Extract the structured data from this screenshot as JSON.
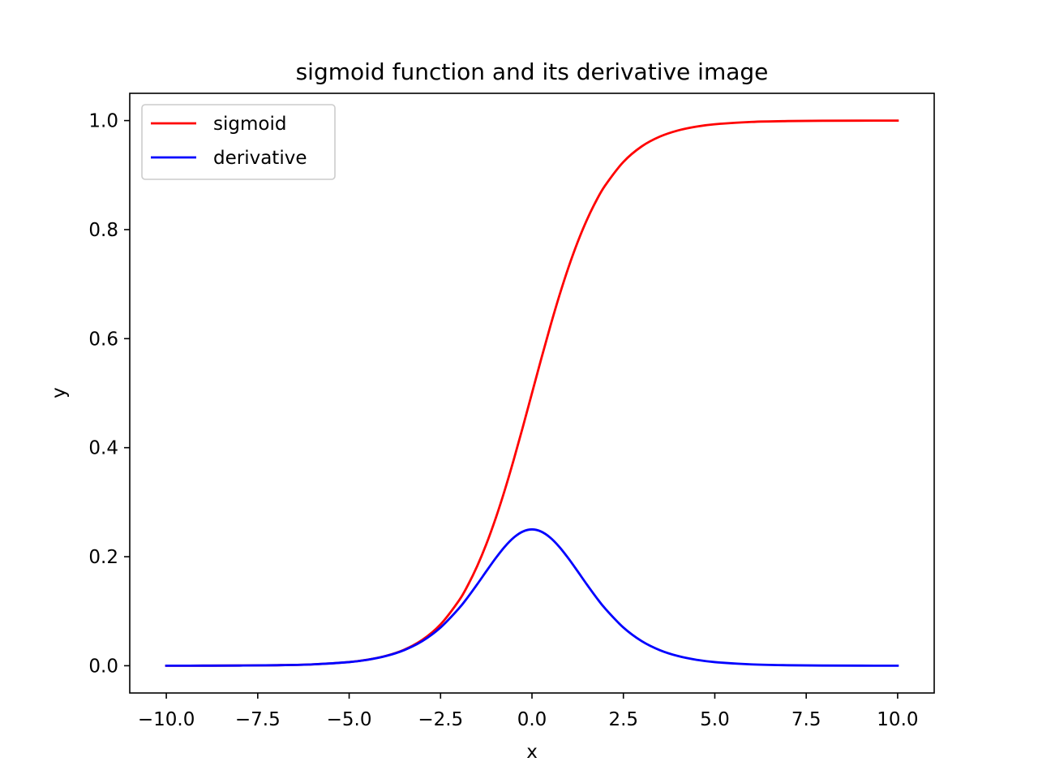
{
  "chart_data": {
    "type": "line",
    "title": "sigmoid function and its derivative image",
    "xlabel": "x",
    "ylabel": "y",
    "xlim": [
      -11.0,
      11.0
    ],
    "ylim": [
      -0.05,
      1.05
    ],
    "xticks": [
      -10.0,
      -7.5,
      -5.0,
      -2.5,
      0.0,
      2.5,
      5.0,
      7.5,
      10.0
    ],
    "xtick_labels": [
      "−10.0",
      "−7.5",
      "−5.0",
      "−2.5",
      "0.0",
      "2.5",
      "5.0",
      "7.5",
      "10.0"
    ],
    "yticks": [
      0.0,
      0.2,
      0.4,
      0.6,
      0.8,
      1.0
    ],
    "ytick_labels": [
      "0.0",
      "0.2",
      "0.4",
      "0.6",
      "0.8",
      "1.0"
    ],
    "grid": false,
    "legend": {
      "location": "upper-left"
    },
    "x": [
      -10,
      -9,
      -8,
      -7,
      -6,
      -5,
      -4.5,
      -4,
      -3.5,
      -3,
      -2.5,
      -2,
      -1.75,
      -1.5,
      -1.25,
      -1,
      -0.75,
      -0.5,
      -0.25,
      0,
      0.25,
      0.5,
      0.75,
      1,
      1.25,
      1.5,
      1.75,
      2,
      2.5,
      3,
      3.5,
      4,
      4.5,
      5,
      6,
      7,
      8,
      9,
      10
    ],
    "series": [
      {
        "name": "sigmoid",
        "color": "#ff0000",
        "values": [
          4.54e-05,
          0.0001234,
          0.0003354,
          0.000911,
          0.002473,
          0.006693,
          0.010987,
          0.017986,
          0.029312,
          0.047426,
          0.075858,
          0.119203,
          0.148047,
          0.182426,
          0.2227,
          0.268941,
          0.320821,
          0.377541,
          0.437823,
          0.5,
          0.562177,
          0.622459,
          0.679179,
          0.731059,
          0.7773,
          0.817574,
          0.851953,
          0.880797,
          0.924142,
          0.952574,
          0.970688,
          0.982014,
          0.989013,
          0.993307,
          0.997527,
          0.999089,
          0.999665,
          0.999877,
          0.999955
        ]
      },
      {
        "name": "derivative",
        "color": "#0000ff",
        "values": [
          4.54e-05,
          0.0001234,
          0.0003353,
          0.00091,
          0.002467,
          0.006648,
          0.010866,
          0.017663,
          0.028453,
          0.045177,
          0.070104,
          0.104994,
          0.126129,
          0.149146,
          0.173104,
          0.196612,
          0.217895,
          0.235004,
          0.246134,
          0.25,
          0.246134,
          0.235004,
          0.217895,
          0.196612,
          0.173104,
          0.149146,
          0.126129,
          0.104994,
          0.070104,
          0.045177,
          0.028453,
          0.017663,
          0.010866,
          0.006648,
          0.002467,
          0.00091,
          0.0003353,
          0.0001234,
          4.54e-05
        ]
      }
    ]
  }
}
